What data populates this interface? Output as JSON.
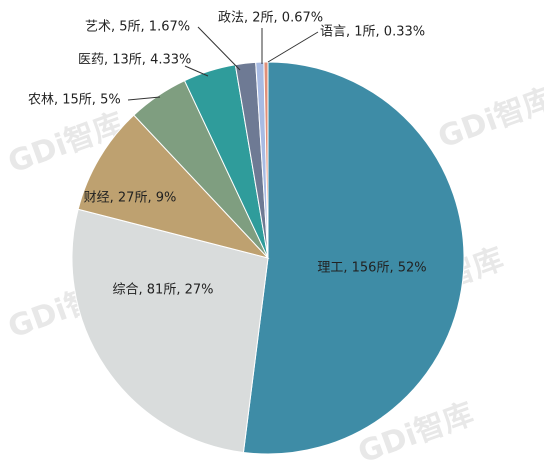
{
  "chart_data": {
    "type": "pie",
    "values": [
      156,
      81,
      27,
      15,
      13,
      5,
      2,
      1
    ],
    "value_labels": [
      "理工, 156所, 52%",
      "综合, 81所, 27%",
      "财经, 27所, 9%",
      "农林, 15所, 5%",
      "医药, 13所, 4.33%",
      "艺术, 5所, 1.67%",
      "政法, 2所, 0.67%",
      "语言, 1所, 0.33%"
    ],
    "colors": [
      "#3e8ca6",
      "#d9dcdc",
      "#bea170",
      "#7f9e80",
      "#2f9c9b",
      "#6e7a94",
      "#a8bbe3",
      "#e0907a"
    ],
    "watermark": "GDi智库"
  }
}
